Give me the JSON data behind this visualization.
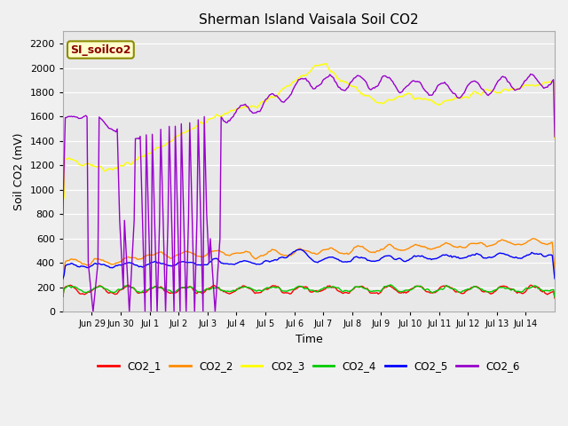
{
  "title": "Sherman Island Vaisala Soil CO2",
  "ylabel": "Soil CO2 (mV)",
  "xlabel": "Time",
  "watermark": "SI_soilco2",
  "background_color": "#e8e8e8",
  "ylim": [
    0,
    2300
  ],
  "yticks": [
    0,
    200,
    400,
    600,
    800,
    1000,
    1200,
    1400,
    1600,
    1800,
    2000,
    2200
  ],
  "xtick_labels": [
    "Jun 29",
    "Jun 30",
    "Jul 1",
    "Jul 2",
    "Jul 3",
    "Jul 4",
    "Jul 5",
    "Jul 6",
    "Jul 7",
    "Jul 8",
    "Jul 9",
    "Jul 10",
    "Jul 11",
    "Jul 12",
    "Jul 13",
    "Jul 14"
  ],
  "series_colors": {
    "CO2_1": "#ff0000",
    "CO2_2": "#ff8c00",
    "CO2_3": "#ffff00",
    "CO2_4": "#00cc00",
    "CO2_5": "#0000ff",
    "CO2_6": "#9900cc"
  },
  "legend_entries": [
    "CO2_1",
    "CO2_2",
    "CO2_3",
    "CO2_4",
    "CO2_5",
    "CO2_6"
  ]
}
